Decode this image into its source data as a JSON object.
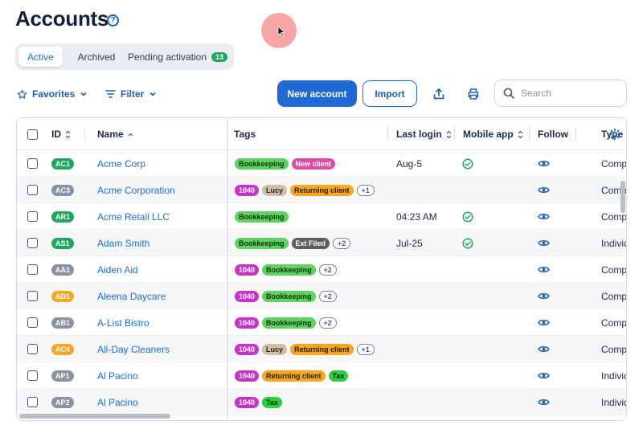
{
  "page": {
    "title": "Accounts",
    "help_icon": "question-circle-icon"
  },
  "tabs": [
    {
      "label": "Active",
      "active": true
    },
    {
      "label": "Archived",
      "active": false
    },
    {
      "label": "Pending activation",
      "count": "13",
      "active": false
    }
  ],
  "toolbar": {
    "favorites_label": "Favorites",
    "filter_label": "Filter",
    "new_account_label": "New account",
    "import_label": "Import",
    "search_placeholder": "Search"
  },
  "columns": {
    "id": "ID",
    "name": "Name",
    "tags": "Tags",
    "last_login": "Last login",
    "mobile_app": "Mobile app",
    "follow": "Follow",
    "type": "Type"
  },
  "colors": {
    "accent": "#1e6bd6",
    "tag_bookkeeping": "#5fd35f",
    "tag_new_client": "#e24aa6",
    "tag_1040": "#c534c9",
    "tag_lucy": "#cdbfa8",
    "tag_returning_client": "#f5a623",
    "tag_ext_filed": "#5d5d5d",
    "tag_tax": "#2ecc40"
  },
  "rows": [
    {
      "id": "AC1",
      "id_color": "#1fa95d",
      "name": "Acme Corp",
      "tags": [
        {
          "label": "Bookkeeping",
          "bg": "#5fd35f",
          "fg": "#0f2f0f"
        },
        {
          "label": "New client",
          "bg": "#e24aa6",
          "fg": "#ffffff"
        }
      ],
      "more": "",
      "last_login": "Aug-5",
      "mobile_app": true,
      "type": "Company"
    },
    {
      "id": "AC3",
      "id_color": "#8a93a3",
      "name": "Acme Corporation",
      "tags": [
        {
          "label": "1040",
          "bg": "#c534c9",
          "fg": "#ffffff"
        },
        {
          "label": "Lucy",
          "bg": "#cdbfa8",
          "fg": "#2a2418"
        },
        {
          "label": "Returning client",
          "bg": "#f5a623",
          "fg": "#2b1a00"
        }
      ],
      "more": "+1",
      "last_login": "",
      "mobile_app": false,
      "type": "Company"
    },
    {
      "id": "AR1",
      "id_color": "#1fa95d",
      "name": "Acme Retail LLC",
      "tags": [
        {
          "label": "Bookkeeping",
          "bg": "#5fd35f",
          "fg": "#0f2f0f"
        }
      ],
      "more": "",
      "last_login": "04:23 AM",
      "mobile_app": true,
      "type": "Company"
    },
    {
      "id": "AS1",
      "id_color": "#1fa95d",
      "name": "Adam Smith",
      "tags": [
        {
          "label": "Bookkeeping",
          "bg": "#5fd35f",
          "fg": "#0f2f0f"
        },
        {
          "label": "Ext Filed",
          "bg": "#5d5d5d",
          "fg": "#ffffff"
        }
      ],
      "more": "+2",
      "last_login": "Jul-25",
      "mobile_app": true,
      "type": "Individual"
    },
    {
      "id": "AA1",
      "id_color": "#8a93a3",
      "name": "Aiden Aid",
      "tags": [
        {
          "label": "1040",
          "bg": "#c534c9",
          "fg": "#ffffff"
        },
        {
          "label": "Bookkeeping",
          "bg": "#5fd35f",
          "fg": "#0f2f0f"
        }
      ],
      "more": "+2",
      "last_login": "",
      "mobile_app": false,
      "type": "Company"
    },
    {
      "id": "AD1",
      "id_color": "#f5a623",
      "name": "Aleena Daycare",
      "tags": [
        {
          "label": "1040",
          "bg": "#c534c9",
          "fg": "#ffffff"
        },
        {
          "label": "Bookkeeping",
          "bg": "#5fd35f",
          "fg": "#0f2f0f"
        }
      ],
      "more": "+2",
      "last_login": "",
      "mobile_app": false,
      "type": "Company"
    },
    {
      "id": "AB1",
      "id_color": "#8a93a3",
      "name": "A-List Bistro",
      "tags": [
        {
          "label": "1040",
          "bg": "#c534c9",
          "fg": "#ffffff"
        },
        {
          "label": "Bookkeeping",
          "bg": "#5fd35f",
          "fg": "#0f2f0f"
        }
      ],
      "more": "+2",
      "last_login": "",
      "mobile_app": false,
      "type": "Company"
    },
    {
      "id": "AC4",
      "id_color": "#f5a623",
      "name": "All-Day Cleaners",
      "tags": [
        {
          "label": "1040",
          "bg": "#c534c9",
          "fg": "#ffffff"
        },
        {
          "label": "Lucy",
          "bg": "#cdbfa8",
          "fg": "#2a2418"
        },
        {
          "label": "Returning client",
          "bg": "#f5a623",
          "fg": "#2b1a00"
        }
      ],
      "more": "+1",
      "last_login": "",
      "mobile_app": false,
      "type": "Company"
    },
    {
      "id": "AP1",
      "id_color": "#8a93a3",
      "name": "Al Pacino",
      "tags": [
        {
          "label": "1040",
          "bg": "#c534c9",
          "fg": "#ffffff"
        },
        {
          "label": "Returning client",
          "bg": "#f5a623",
          "fg": "#2b1a00"
        },
        {
          "label": "Tax",
          "bg": "#2ecc40",
          "fg": "#0f2f0f"
        }
      ],
      "more": "",
      "last_login": "",
      "mobile_app": false,
      "type": "Individual"
    },
    {
      "id": "AP2",
      "id_color": "#8a93a3",
      "name": "Al Pacino",
      "tags": [
        {
          "label": "1040",
          "bg": "#c534c9",
          "fg": "#ffffff"
        },
        {
          "label": "Tax",
          "bg": "#2ecc40",
          "fg": "#0f2f0f"
        }
      ],
      "more": "",
      "last_login": "",
      "mobile_app": false,
      "type": "Individual"
    }
  ]
}
